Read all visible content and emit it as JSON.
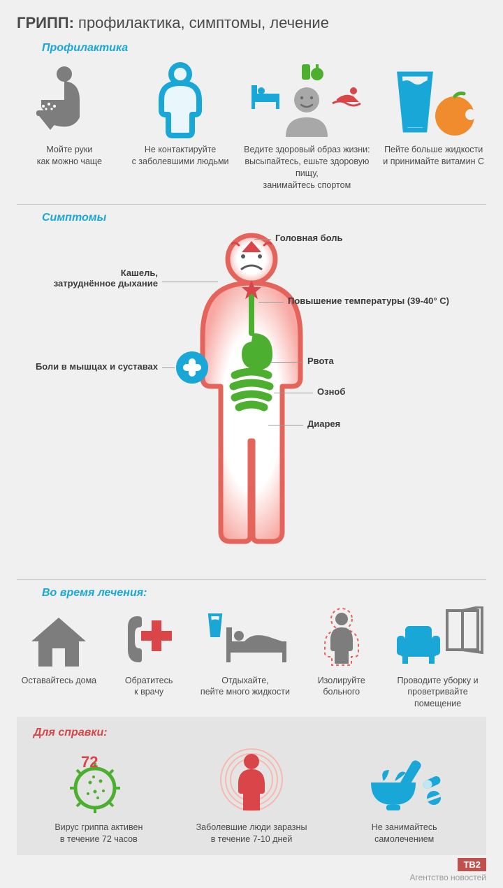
{
  "colors": {
    "gray": "#7d7d7d",
    "blue": "#19a7d8",
    "green": "#4caf2f",
    "red": "#d94548",
    "orange": "#f08c2e",
    "text": "#4a4a4a",
    "bg": "#f0f0f0"
  },
  "title_bold": "ГРИПП:",
  "title_rest": " профилактика, симптомы, лечение",
  "prevention": {
    "heading": "Профилактика",
    "items": [
      {
        "caption": "Мойте руки\nкак можно чаще"
      },
      {
        "caption": "Не контактируйте\nс заболевшими людьми"
      },
      {
        "caption": "Ведите здоровый образ жизни:\nвысыпайтесь, ешьте здоровую пищу,\nзанимайтесь спортом"
      },
      {
        "caption": "Пейте больше жидкости\nи принимайте витамин C"
      }
    ]
  },
  "symptoms": {
    "heading": "Симптомы",
    "labels": {
      "headache": "Головная боль",
      "cough": "Кашель,\nзатруднённое дыхание",
      "fever": "Повышение температуры (39-40° C)",
      "joints": "Боли в мышцах и суставах",
      "vomit": "Рвота",
      "chills": "Озноб",
      "diarrhea": "Диарея"
    }
  },
  "treatment": {
    "heading": "Во время лечения:",
    "items": [
      {
        "caption": "Оставайтесь дома"
      },
      {
        "caption": "Обратитесь\nк врачу"
      },
      {
        "caption": "Отдыхайте,\nпейте много жидкости"
      },
      {
        "caption": "Изолируйте\nбольного"
      },
      {
        "caption": "Проводите уборку и\nпроветривайте помещение"
      }
    ]
  },
  "reference": {
    "heading": "Для справки:",
    "virus_hours": "72",
    "items": [
      {
        "caption": "Вирус гриппа активен\nв течение 72 часов"
      },
      {
        "caption": "Заболевшие люди заразны\nв течение 7-10 дней"
      },
      {
        "caption": "Не занимайтесь\nсамолечением"
      }
    ]
  },
  "footer": {
    "logo": "ТВ2",
    "agency": "Агентство новостей"
  }
}
